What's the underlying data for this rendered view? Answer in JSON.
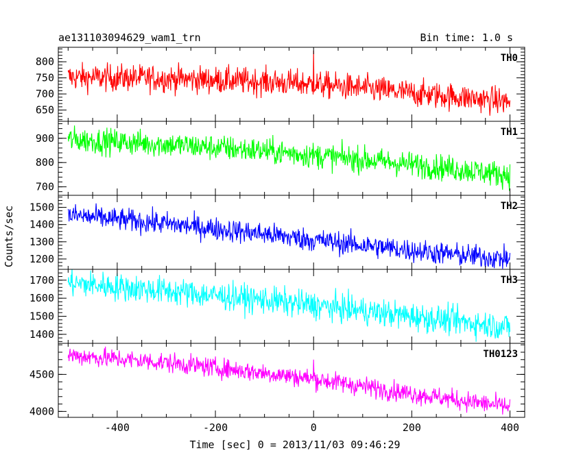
{
  "chart_data": {
    "type": "line",
    "title": "ae131103094629_wam1_trn",
    "bin_time_label": "Bin time: 1.0 s",
    "xlabel": "Time [sec] 0 = 2013/11/03 09:46:29",
    "ylabel": "Counts/sec",
    "xlim": [
      -520,
      430
    ],
    "x_ticks": [
      -400,
      -200,
      0,
      200,
      400
    ],
    "grid": false,
    "panels": [
      {
        "name": "TH0",
        "color": "#ff0000",
        "ylim": [
          615,
          845
        ],
        "y_ticks": [
          650,
          700,
          750,
          800
        ],
        "trend": [
          [
            -500,
            752
          ],
          [
            -300,
            748
          ],
          [
            -100,
            738
          ],
          [
            0,
            730
          ],
          [
            100,
            718
          ],
          [
            200,
            702
          ],
          [
            300,
            690
          ],
          [
            400,
            675
          ]
        ],
        "noise": 30,
        "spikes": [
          [
            0,
            835
          ]
        ]
      },
      {
        "name": "TH1",
        "color": "#00ff00",
        "ylim": [
          665,
          970
        ],
        "y_ticks": [
          700,
          800,
          900
        ],
        "trend": [
          [
            -500,
            895
          ],
          [
            -300,
            875
          ],
          [
            -100,
            848
          ],
          [
            0,
            830
          ],
          [
            100,
            812
          ],
          [
            200,
            792
          ],
          [
            300,
            772
          ],
          [
            400,
            748
          ]
        ],
        "noise": 38
      },
      {
        "name": "TH2",
        "color": "#0000ff",
        "ylim": [
          1140,
          1570
        ],
        "y_ticks": [
          1200,
          1300,
          1400,
          1500
        ],
        "trend": [
          [
            -500,
            1455
          ],
          [
            -300,
            1405
          ],
          [
            -100,
            1345
          ],
          [
            0,
            1310
          ],
          [
            100,
            1280
          ],
          [
            200,
            1250
          ],
          [
            300,
            1222
          ],
          [
            400,
            1200
          ]
        ],
        "noise": 48
      },
      {
        "name": "TH3",
        "color": "#00ffff",
        "ylim": [
          1350,
          1760
        ],
        "y_ticks": [
          1400,
          1500,
          1600,
          1700
        ],
        "trend": [
          [
            -500,
            1685
          ],
          [
            -300,
            1640
          ],
          [
            -100,
            1590
          ],
          [
            0,
            1560
          ],
          [
            100,
            1530
          ],
          [
            200,
            1500
          ],
          [
            300,
            1470
          ],
          [
            400,
            1440
          ]
        ],
        "noise": 55
      },
      {
        "name": "TH0123",
        "color": "#ff00ff",
        "ylim": [
          3920,
          4920
        ],
        "y_ticks": [
          4000,
          4500
        ],
        "trend": [
          [
            -500,
            4760
          ],
          [
            -300,
            4660
          ],
          [
            -100,
            4520
          ],
          [
            0,
            4440
          ],
          [
            100,
            4340
          ],
          [
            200,
            4240
          ],
          [
            300,
            4150
          ],
          [
            400,
            4060
          ]
        ],
        "noise": 95,
        "spikes": [
          [
            0,
            4700
          ]
        ]
      }
    ]
  }
}
